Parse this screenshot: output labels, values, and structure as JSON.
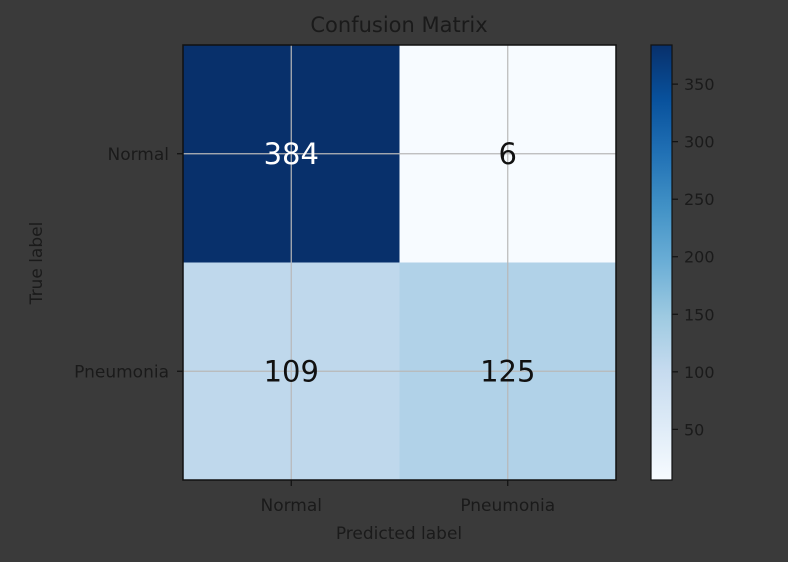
{
  "colors": {
    "figure_background": "#3a3a3a",
    "text": "#1a1a1a",
    "grid": "#b8b8b8",
    "cmap_low": "#f7fbff",
    "cmap_high": "#08306b",
    "cell_text_light": "#ffffff",
    "cell_text_dark": "#111111"
  },
  "chart_data": {
    "type": "heatmap",
    "title": "Confusion Matrix",
    "xlabel": "Predicted label",
    "ylabel": "True label",
    "x_categories": [
      "Normal",
      "Pneumonia"
    ],
    "y_categories": [
      "Normal",
      "Pneumonia"
    ],
    "values": [
      [
        384,
        6
      ],
      [
        109,
        125
      ]
    ],
    "colormap": "Blues",
    "color_range": [
      6,
      384
    ],
    "colorbar_ticks": [
      50,
      100,
      150,
      200,
      250,
      300,
      350
    ],
    "grid": true,
    "colorbar": "right"
  }
}
